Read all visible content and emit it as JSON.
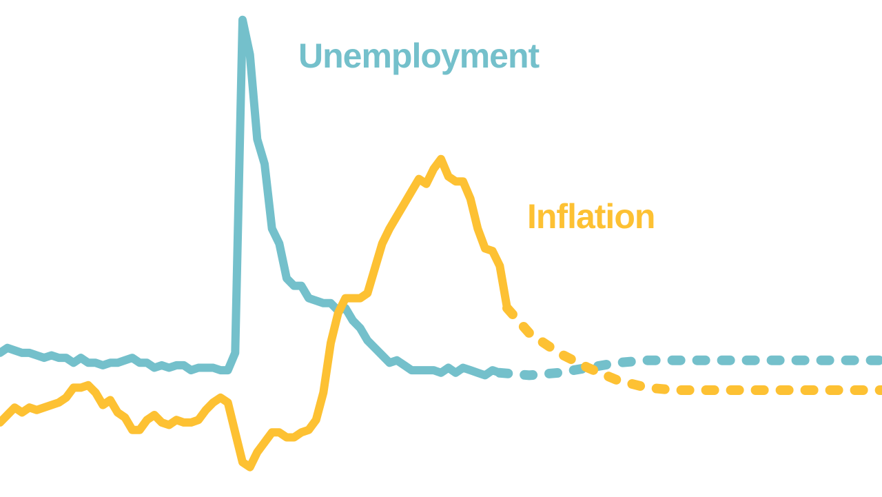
{
  "chart_data": {
    "type": "line",
    "title": "",
    "xlabel": "",
    "ylabel": "",
    "grid": false,
    "legend": "direct labels on lines",
    "xlim": [
      0,
      120
    ],
    "ylim": [
      0,
      100
    ],
    "series": [
      {
        "name": "Unemployment",
        "color": "#74c0cb",
        "actual": [
          [
            0,
            29
          ],
          [
            1,
            30
          ],
          [
            2,
            29.5
          ],
          [
            3,
            29
          ],
          [
            4,
            29
          ],
          [
            5,
            28.5
          ],
          [
            6,
            28
          ],
          [
            7,
            28.5
          ],
          [
            8,
            28
          ],
          [
            9,
            28
          ],
          [
            10,
            27
          ],
          [
            11,
            28
          ],
          [
            12,
            27
          ],
          [
            13,
            27
          ],
          [
            14,
            26.5
          ],
          [
            15,
            27
          ],
          [
            16,
            27
          ],
          [
            17,
            27.5
          ],
          [
            18,
            28
          ],
          [
            19,
            27
          ],
          [
            20,
            27
          ],
          [
            21,
            26
          ],
          [
            22,
            26.5
          ],
          [
            23,
            26
          ],
          [
            24,
            26.5
          ],
          [
            25,
            26.5
          ],
          [
            26,
            25.5
          ],
          [
            27,
            26
          ],
          [
            28,
            26
          ],
          [
            29,
            26
          ],
          [
            30,
            25.5
          ],
          [
            31,
            25.5
          ],
          [
            32,
            29
          ],
          [
            33,
            96
          ],
          [
            34,
            89
          ],
          [
            35,
            72
          ],
          [
            36,
            67
          ],
          [
            37,
            54
          ],
          [
            38,
            51
          ],
          [
            39,
            44
          ],
          [
            40,
            42.5
          ],
          [
            41,
            42.5
          ],
          [
            42,
            40
          ],
          [
            43,
            39.5
          ],
          [
            44,
            39
          ],
          [
            45,
            39
          ],
          [
            46,
            37.5
          ],
          [
            47,
            38
          ],
          [
            48,
            35.5
          ],
          [
            49,
            34
          ],
          [
            50,
            31.5
          ],
          [
            51,
            30
          ],
          [
            52,
            28.5
          ],
          [
            53,
            27
          ],
          [
            54,
            27.5
          ],
          [
            55,
            26.5
          ],
          [
            56,
            25.5
          ],
          [
            57,
            25.5
          ],
          [
            58,
            25.5
          ],
          [
            59,
            25.5
          ],
          [
            60,
            25
          ],
          [
            61,
            26
          ],
          [
            62,
            25
          ],
          [
            63,
            26
          ],
          [
            64,
            25.5
          ],
          [
            65,
            25
          ],
          [
            66,
            24.5
          ],
          [
            67,
            25.5
          ],
          [
            68,
            25
          ]
        ],
        "projected": [
          [
            68,
            25
          ],
          [
            72,
            24.5
          ],
          [
            76,
            25
          ],
          [
            80,
            26
          ],
          [
            84,
            27
          ],
          [
            88,
            27.5
          ],
          [
            92,
            27.5
          ],
          [
            96,
            27.5
          ],
          [
            100,
            27.5
          ],
          [
            104,
            27.5
          ],
          [
            108,
            27.5
          ],
          [
            112,
            27.5
          ],
          [
            116,
            27.5
          ],
          [
            120,
            27.5
          ]
        ]
      },
      {
        "name": "Inflation",
        "color": "#fdc133",
        "actual": [
          [
            0,
            15
          ],
          [
            1,
            16.5
          ],
          [
            2,
            18
          ],
          [
            3,
            17
          ],
          [
            4,
            18
          ],
          [
            5,
            17.5
          ],
          [
            6,
            18
          ],
          [
            7,
            18.5
          ],
          [
            8,
            19
          ],
          [
            9,
            20
          ],
          [
            10,
            22
          ],
          [
            11,
            22
          ],
          [
            12,
            22.5
          ],
          [
            13,
            21
          ],
          [
            14,
            18.5
          ],
          [
            15,
            19.5
          ],
          [
            16,
            17
          ],
          [
            17,
            16
          ],
          [
            18,
            13.5
          ],
          [
            19,
            13.5
          ],
          [
            20,
            15.5
          ],
          [
            21,
            16.5
          ],
          [
            22,
            15
          ],
          [
            23,
            14.5
          ],
          [
            24,
            15.5
          ],
          [
            25,
            15
          ],
          [
            26,
            15
          ],
          [
            27,
            15.5
          ],
          [
            28,
            17.5
          ],
          [
            29,
            19
          ],
          [
            30,
            20
          ],
          [
            31,
            19
          ],
          [
            32,
            13
          ],
          [
            33,
            7
          ],
          [
            34,
            6
          ],
          [
            35,
            9
          ],
          [
            36,
            11
          ],
          [
            37,
            13
          ],
          [
            38,
            13
          ],
          [
            39,
            12
          ],
          [
            40,
            12
          ],
          [
            41,
            13
          ],
          [
            42,
            13.5
          ],
          [
            43,
            15.5
          ],
          [
            44,
            21
          ],
          [
            45,
            31
          ],
          [
            46,
            37
          ],
          [
            47,
            40
          ],
          [
            48,
            40
          ],
          [
            49,
            40
          ],
          [
            50,
            41
          ],
          [
            51,
            46
          ],
          [
            52,
            51
          ],
          [
            53,
            54
          ],
          [
            54,
            56.5
          ],
          [
            55,
            59
          ],
          [
            56,
            61.5
          ],
          [
            57,
            64
          ],
          [
            58,
            63
          ],
          [
            59,
            66
          ],
          [
            60,
            68
          ],
          [
            61,
            64.5
          ],
          [
            62,
            63.5
          ],
          [
            63,
            63.5
          ],
          [
            64,
            60
          ],
          [
            65,
            54
          ],
          [
            66,
            50
          ],
          [
            67,
            49.5
          ],
          [
            68,
            46.5
          ],
          [
            69,
            38
          ]
        ],
        "projected": [
          [
            69,
            38
          ],
          [
            72,
            33
          ],
          [
            76,
            29
          ],
          [
            80,
            26
          ],
          [
            84,
            23.5
          ],
          [
            88,
            22
          ],
          [
            92,
            21.5
          ],
          [
            96,
            21.5
          ],
          [
            100,
            21.5
          ],
          [
            104,
            21.5
          ],
          [
            108,
            21.5
          ],
          [
            112,
            21.5
          ],
          [
            116,
            21.5
          ],
          [
            120,
            21.5
          ]
        ]
      }
    ]
  }
}
